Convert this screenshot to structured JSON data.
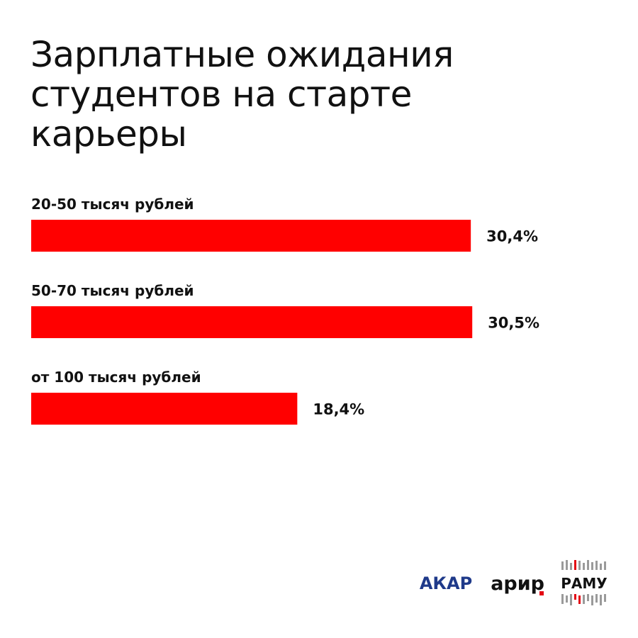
{
  "title_lines": [
    "Зарплатные ожидания",
    "студентов на старте",
    "карьеры"
  ],
  "colors": {
    "bar": "#ff0000",
    "text": "#111111",
    "akar_logo": "#1f3a8a",
    "accent_red": "#e30613"
  },
  "chart_data": {
    "type": "bar",
    "orientation": "horizontal",
    "categories": [
      "20-50 тысяч рублей",
      "50-70 тысяч рублей",
      "от 100 тысяч рублей"
    ],
    "values": [
      30.4,
      30.5,
      18.4
    ],
    "value_labels": [
      "30,4%",
      "30,5%",
      "18,4%"
    ],
    "title": "Зарплатные ожидания студентов на старте карьеры",
    "xlabel": "",
    "ylabel": "",
    "grid": false,
    "legend": "none"
  },
  "logos": {
    "akar": "АКАР",
    "arir": "арир",
    "ramu": "РАМУ"
  }
}
